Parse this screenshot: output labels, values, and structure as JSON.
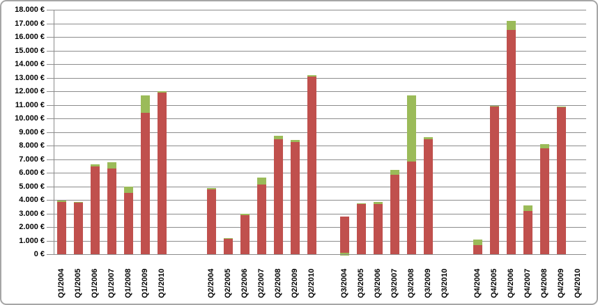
{
  "frame": {
    "background": "#FFFFFF",
    "border_color": "#A6A6A6"
  },
  "chart_data": {
    "type": "bar",
    "stacked": true,
    "title": "",
    "xlabel": "",
    "ylabel": "",
    "legend": "none",
    "grid": true,
    "grid_color": "#8C8C8C",
    "axis_color": "#8C8C8C",
    "text_color": "#000000",
    "ylim": [
      0,
      18000
    ],
    "ytick_step": 1000,
    "ytick_labels": [
      "0 €",
      "1.000 €",
      "2.000 €",
      "3.000 €",
      "4.000 €",
      "5.000 €",
      "6.000 €",
      "7.000 €",
      "8.000 €",
      "9.000 €",
      "10.000 €",
      "11.000 €",
      "12.000 €",
      "13.000 €",
      "14.000 €",
      "15.000 €",
      "16.000 €",
      "17.000 €",
      "18.000 €"
    ],
    "categories": [
      "Q1/2004",
      "Q1/2005",
      "Q1/2006",
      "Q1/2007",
      "Q1/2008",
      "Q1/2009",
      "Q1/2010",
      "Q2/2004",
      "Q2/2005",
      "Q2/2006",
      "Q2/2007",
      "Q2/2008",
      "Q2/2009",
      "Q2/2010",
      "Q3/2004",
      "Q3/2005",
      "Q3/2006",
      "Q3/2007",
      "Q3/2008",
      "Q3/2009",
      "Q3/2010",
      "Q4/2004",
      "Q4/2005",
      "Q4/2006",
      "Q4/2007",
      "Q4/2008",
      "Q4/2009",
      "Q4/2010"
    ],
    "series": [
      {
        "name": "red",
        "color": "#C0504D",
        "values": [
          3850,
          3800,
          6450,
          6300,
          4500,
          10400,
          11900,
          4750,
          1150,
          2850,
          5150,
          8450,
          8250,
          13100,
          2750,
          3700,
          3700,
          5850,
          6850,
          8450,
          0,
          650,
          10900,
          16550,
          3200,
          7800,
          10850,
          0
        ]
      },
      {
        "name": "green",
        "color": "#9BBB59",
        "values": [
          100,
          50,
          150,
          500,
          500,
          1300,
          100,
          150,
          50,
          150,
          500,
          300,
          150,
          100,
          100,
          50,
          150,
          350,
          4850,
          150,
          0,
          450,
          50,
          650,
          400,
          300,
          50,
          0
        ]
      }
    ],
    "green_at_base_category": "Q3/2004",
    "group_structure": "categories grouped by quarter: Q1 block, gap, Q2 block, gap, Q3 block, gap, Q4 block"
  }
}
